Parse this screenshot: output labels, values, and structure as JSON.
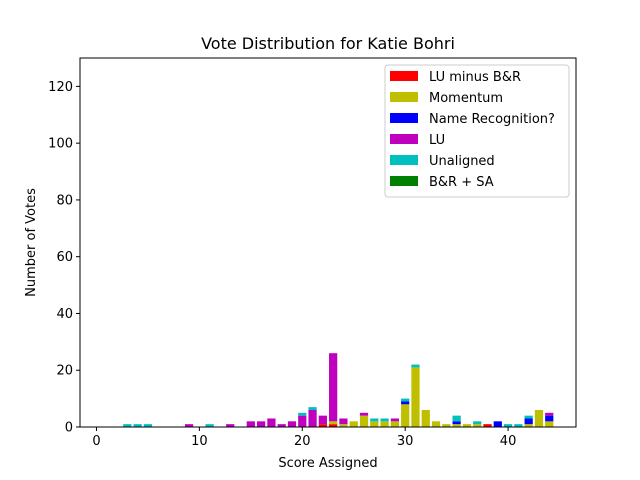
{
  "chart_data": {
    "type": "bar",
    "stacked": true,
    "title": "Vote Distribution for Katie Bohri",
    "xlabel": "Score Assigned",
    "ylabel": "Number of Votes",
    "xlim": [
      -1.6,
      46.6
    ],
    "ylim": [
      0,
      130
    ],
    "xticks": [
      0,
      10,
      20,
      30,
      40
    ],
    "yticks": [
      0,
      20,
      40,
      60,
      80,
      100,
      120
    ],
    "grid": false,
    "legend_position": "top-right",
    "x": [
      0,
      1,
      2,
      3,
      4,
      5,
      6,
      7,
      8,
      9,
      10,
      11,
      12,
      13,
      14,
      15,
      16,
      17,
      18,
      19,
      20,
      21,
      22,
      23,
      24,
      25,
      26,
      27,
      28,
      29,
      30,
      31,
      32,
      33,
      34,
      35,
      36,
      37,
      38,
      39,
      40,
      41,
      42,
      43,
      44
    ],
    "series": [
      {
        "name": "LU minus B&R",
        "color": "#ff0000",
        "values": [
          0,
          0,
          0,
          0,
          0,
          0,
          0,
          0,
          0,
          0,
          0,
          0,
          0,
          0,
          0,
          0,
          0,
          0,
          0,
          0,
          0,
          0,
          1,
          1,
          0,
          0,
          0,
          0,
          0,
          0,
          0,
          0,
          0,
          0,
          0,
          0,
          0,
          0,
          1,
          0,
          0,
          0,
          0,
          0,
          0
        ]
      },
      {
        "name": "Momentum",
        "color": "#bfbf00",
        "values": [
          0,
          0,
          0,
          0,
          0,
          0,
          0,
          0,
          0,
          0,
          0,
          0,
          0,
          0,
          0,
          0,
          0,
          0,
          0,
          0,
          0,
          0,
          0,
          1,
          1,
          2,
          4,
          2,
          2,
          2,
          8,
          21,
          6,
          2,
          1,
          1,
          1,
          1,
          0,
          0,
          0,
          0,
          1,
          6,
          2
        ]
      },
      {
        "name": "Name Recognition?",
        "color": "#0000ff",
        "values": [
          0,
          0,
          0,
          0,
          0,
          0,
          0,
          0,
          0,
          0,
          0,
          0,
          0,
          0,
          0,
          0,
          0,
          0,
          0,
          0,
          0,
          0,
          0,
          0,
          0,
          0,
          0,
          0,
          0,
          0,
          1,
          0,
          0,
          0,
          0,
          1,
          0,
          0,
          0,
          2,
          0,
          0,
          2,
          0,
          2
        ]
      },
      {
        "name": "LU",
        "color": "#bf00bf",
        "values": [
          0,
          0,
          0,
          0,
          0,
          0,
          0,
          0,
          0,
          1,
          0,
          0,
          0,
          1,
          0,
          2,
          2,
          3,
          1,
          2,
          4,
          6,
          3,
          24,
          2,
          0,
          1,
          0,
          0,
          1,
          0,
          0,
          0,
          0,
          0,
          0,
          0,
          0,
          0,
          0,
          0,
          0,
          0,
          0,
          1
        ]
      },
      {
        "name": "Unaligned",
        "color": "#00bfbf",
        "values": [
          0,
          0,
          0,
          1,
          1,
          1,
          0,
          0,
          0,
          0,
          0,
          1,
          0,
          0,
          0,
          0,
          0,
          0,
          0,
          0,
          1,
          1,
          0,
          0,
          0,
          0,
          0,
          1,
          1,
          0,
          1,
          1,
          0,
          0,
          0,
          2,
          0,
          1,
          0,
          0,
          1,
          1,
          1,
          0,
          0
        ]
      },
      {
        "name": "B&R + SA",
        "color": "#008000",
        "values": [
          0,
          0,
          0,
          0,
          0,
          0,
          0,
          0,
          0,
          0,
          0,
          0,
          0,
          0,
          0,
          0,
          0,
          0,
          0,
          0,
          0,
          0,
          0,
          0,
          0,
          0,
          0,
          0,
          0,
          0,
          0,
          0,
          0,
          0,
          0,
          0,
          0,
          0,
          0,
          0,
          0,
          0,
          0,
          0,
          0
        ]
      }
    ]
  }
}
